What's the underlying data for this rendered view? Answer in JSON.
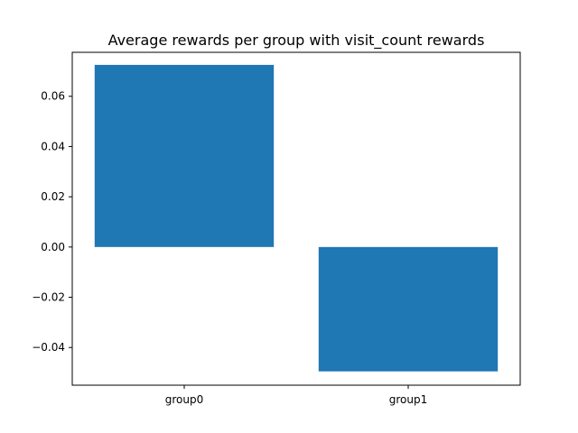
{
  "chart_data": {
    "type": "bar",
    "title": "Average rewards per group with visit_count rewards",
    "xlabel": "",
    "ylabel": "",
    "categories": [
      "group0",
      "group1"
    ],
    "values": [
      0.0725,
      -0.0495
    ],
    "ylim": [
      -0.055,
      0.0775
    ],
    "yticks": [
      -0.04,
      -0.02,
      0.0,
      0.02,
      0.04,
      0.06
    ],
    "ytick_labels": [
      "−0.04",
      "−0.02",
      "0.00",
      "0.02",
      "0.04",
      "0.06"
    ],
    "bar_color": "#1f77b4",
    "grid": false,
    "legend": false
  }
}
